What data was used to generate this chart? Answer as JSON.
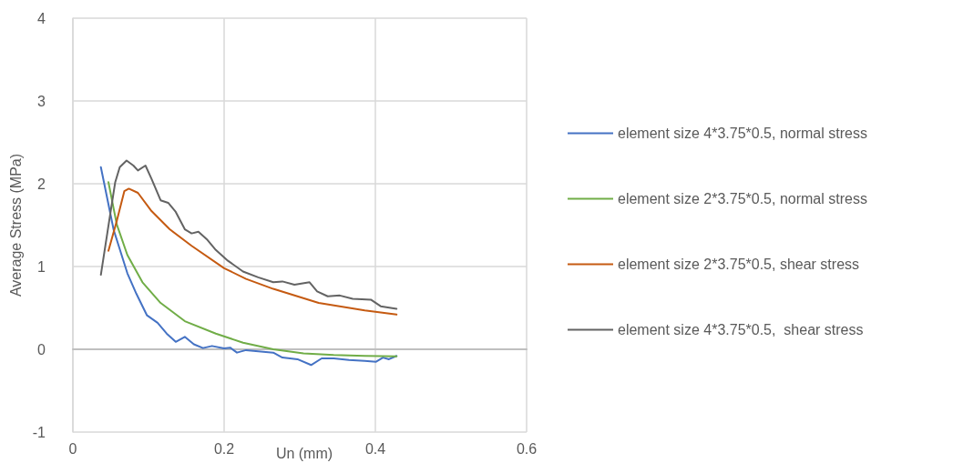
{
  "chart_data": {
    "type": "line",
    "xlabel": "Un (mm)",
    "ylabel": "Average Stress (MPa)",
    "xlim": [
      0,
      0.6
    ],
    "xticks": [
      0,
      0.2,
      0.4,
      0.6
    ],
    "ylim": [
      -1,
      4
    ],
    "yticks": [
      -1,
      0,
      1,
      2,
      3,
      4
    ],
    "grid": true,
    "legend": "right",
    "marker": "none",
    "line_style": "solid",
    "series": [
      {
        "name": "element size 4*3.75*0.5, normal stress",
        "color": "#4472c4",
        "x": [
          0.037,
          0.054,
          0.072,
          0.084,
          0.098,
          0.112,
          0.124,
          0.136,
          0.148,
          0.16,
          0.172,
          0.184,
          0.2,
          0.208,
          0.217,
          0.229,
          0.265,
          0.277,
          0.297,
          0.315,
          0.329,
          0.345,
          0.365,
          0.386,
          0.401,
          0.41,
          0.418,
          0.428
        ],
        "values": [
          2.2,
          1.44,
          0.92,
          0.67,
          0.41,
          0.32,
          0.19,
          0.09,
          0.15,
          0.06,
          0.015,
          0.04,
          0.01,
          0.02,
          -0.04,
          -0.01,
          -0.04,
          -0.1,
          -0.12,
          -0.19,
          -0.11,
          -0.11,
          -0.13,
          -0.14,
          -0.15,
          -0.1,
          -0.12,
          -0.08
        ]
      },
      {
        "name": "element size 2*3.75*0.5, normal stress",
        "color": "#70ad47",
        "x": [
          0.047,
          0.058,
          0.072,
          0.092,
          0.116,
          0.148,
          0.189,
          0.225,
          0.265,
          0.305,
          0.345,
          0.386,
          0.428
        ],
        "values": [
          2.02,
          1.51,
          1.14,
          0.81,
          0.56,
          0.34,
          0.19,
          0.08,
          0.0,
          -0.05,
          -0.07,
          -0.08,
          -0.085
        ]
      },
      {
        "name": "element size 2*3.75*0.5, shear stress",
        "color": "#c55a11",
        "x": [
          0.047,
          0.058,
          0.068,
          0.074,
          0.086,
          0.104,
          0.128,
          0.157,
          0.2,
          0.229,
          0.265,
          0.325,
          0.386,
          0.428
        ],
        "values": [
          1.19,
          1.55,
          1.91,
          1.94,
          1.89,
          1.67,
          1.45,
          1.25,
          0.98,
          0.85,
          0.73,
          0.56,
          0.47,
          0.42
        ]
      },
      {
        "name": "element size 4*3.75*0.5,  shear stress",
        "color": "#636363",
        "x": [
          0.037,
          0.048,
          0.056,
          0.062,
          0.071,
          0.08,
          0.086,
          0.096,
          0.104,
          0.116,
          0.126,
          0.136,
          0.148,
          0.157,
          0.166,
          0.177,
          0.189,
          0.205,
          0.225,
          0.245,
          0.265,
          0.277,
          0.293,
          0.313,
          0.323,
          0.337,
          0.353,
          0.37,
          0.394,
          0.407,
          0.428
        ],
        "values": [
          0.9,
          1.55,
          2.02,
          2.2,
          2.28,
          2.22,
          2.16,
          2.22,
          2.06,
          1.8,
          1.77,
          1.66,
          1.45,
          1.4,
          1.42,
          1.33,
          1.2,
          1.07,
          0.94,
          0.87,
          0.81,
          0.82,
          0.78,
          0.81,
          0.7,
          0.64,
          0.65,
          0.61,
          0.6,
          0.52,
          0.49
        ]
      }
    ]
  }
}
